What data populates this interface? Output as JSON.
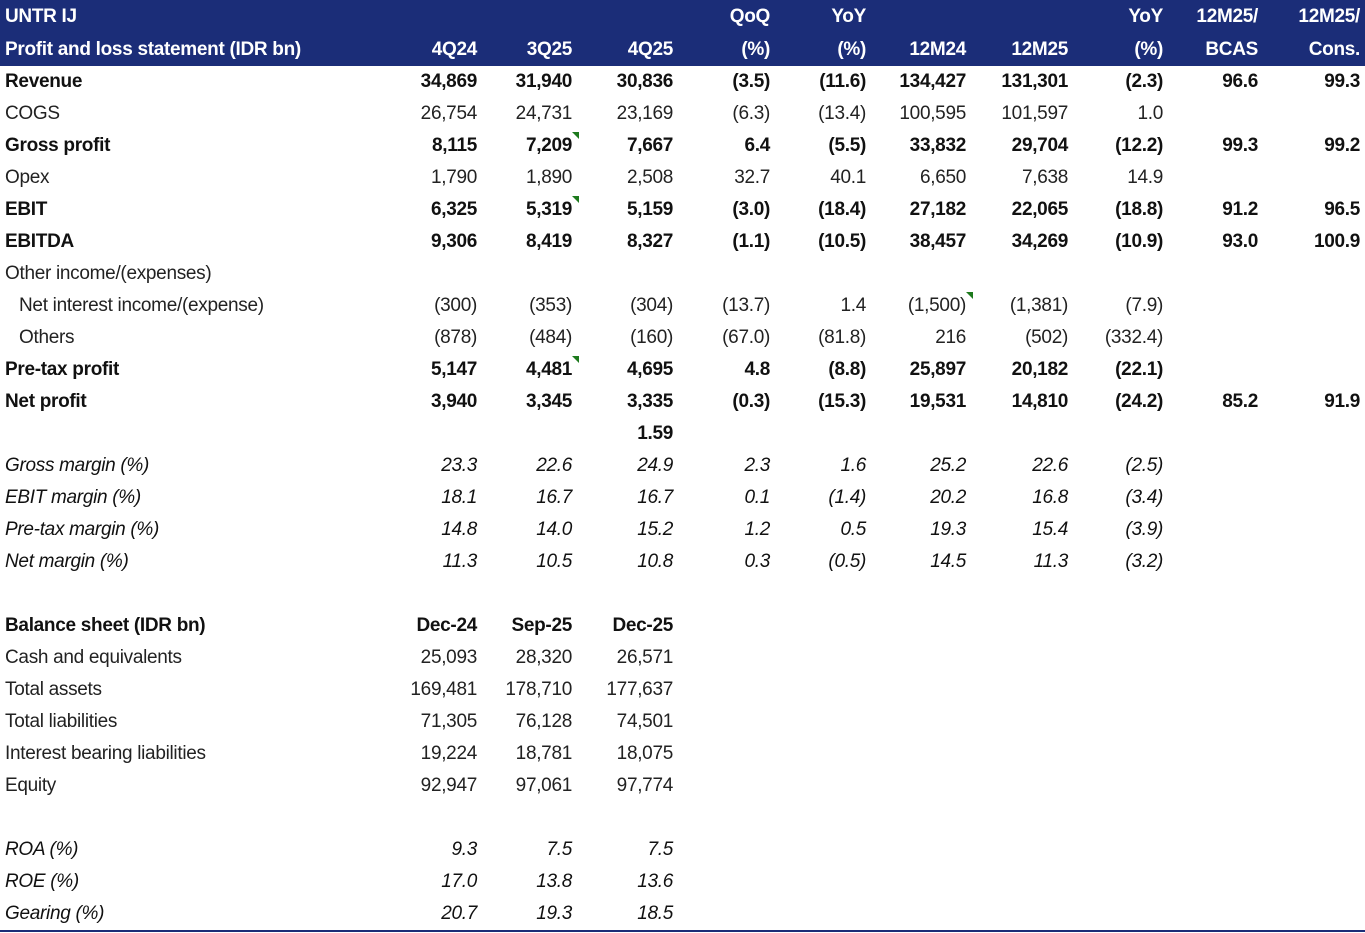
{
  "header": {
    "row1": [
      "UNTR IJ",
      "",
      "",
      "",
      "QoQ",
      "YoY",
      "",
      "",
      "YoY",
      "12M25/",
      "12M25/"
    ],
    "row2": [
      "Profit and loss statement (IDR bn)",
      "4Q24",
      "3Q25",
      "4Q25",
      "(%)",
      "(%)",
      "12M24",
      "12M25",
      "(%)",
      "BCAS",
      "Cons."
    ]
  },
  "rows": [
    {
      "kind": "bold",
      "cells": [
        "Revenue",
        "34,869",
        "31,940",
        "30,836",
        "(3.5)",
        "(11.6)",
        "134,427",
        "131,301",
        "(2.3)",
        "96.6",
        "99.3"
      ]
    },
    {
      "kind": "normal",
      "cells": [
        "COGS",
        "26,754",
        "24,731",
        "23,169",
        "(6.3)",
        "(13.4)",
        "100,595",
        "101,597",
        "1.0",
        "",
        ""
      ]
    },
    {
      "kind": "bold",
      "comment": [
        2
      ],
      "cells": [
        "Gross profit",
        "8,115",
        "7,209",
        "7,667",
        "6.4",
        "(5.5)",
        "33,832",
        "29,704",
        "(12.2)",
        "99.3",
        "99.2"
      ]
    },
    {
      "kind": "normal",
      "cells": [
        "Opex",
        "1,790",
        "1,890",
        "2,508",
        "32.7",
        "40.1",
        "6,650",
        "7,638",
        "14.9",
        "",
        ""
      ]
    },
    {
      "kind": "bold",
      "comment": [
        2
      ],
      "cells": [
        "EBIT",
        "6,325",
        "5,319",
        "5,159",
        "(3.0)",
        "(18.4)",
        "27,182",
        "22,065",
        "(18.8)",
        "91.2",
        "96.5"
      ]
    },
    {
      "kind": "bold",
      "cells": [
        "EBITDA",
        "9,306",
        "8,419",
        "8,327",
        "(1.1)",
        "(10.5)",
        "38,457",
        "34,269",
        "(10.9)",
        "93.0",
        "100.9"
      ]
    },
    {
      "kind": "normal",
      "cells": [
        "Other income/(expenses)",
        "",
        "",
        "",
        "",
        "",
        "",
        "",
        "",
        "",
        ""
      ]
    },
    {
      "kind": "indent",
      "comment": [
        6
      ],
      "cells": [
        "Net interest income/(expense)",
        "(300)",
        "(353)",
        "(304)",
        "(13.7)",
        "1.4",
        "(1,500)",
        "(1,381)",
        "(7.9)",
        "",
        ""
      ]
    },
    {
      "kind": "indent",
      "cells": [
        "Others",
        "(878)",
        "(484)",
        "(160)",
        "(67.0)",
        "(81.8)",
        "216",
        "(502)",
        "(332.4)",
        "",
        ""
      ]
    },
    {
      "kind": "bold",
      "comment": [
        2
      ],
      "cells": [
        "Pre-tax profit",
        "5,147",
        "4,481",
        "4,695",
        "4.8",
        "(8.8)",
        "25,897",
        "20,182",
        "(22.1)",
        "",
        ""
      ]
    },
    {
      "kind": "bold",
      "cells": [
        "Net profit",
        "3,940",
        "3,345",
        "3,335",
        "(0.3)",
        "(15.3)",
        "19,531",
        "14,810",
        "(24.2)",
        "85.2",
        "91.9"
      ]
    },
    {
      "kind": "bold",
      "cells": [
        "",
        "",
        "",
        "1.59",
        "",
        "",
        "",
        "",
        "",
        "",
        ""
      ]
    },
    {
      "kind": "italic",
      "cells": [
        "Gross margin (%)",
        "23.3",
        "22.6",
        "24.9",
        "2.3",
        "1.6",
        "25.2",
        "22.6",
        "(2.5)",
        "",
        ""
      ]
    },
    {
      "kind": "italic",
      "cells": [
        "EBIT margin (%)",
        "18.1",
        "16.7",
        "16.7",
        "0.1",
        "(1.4)",
        "20.2",
        "16.8",
        "(3.4)",
        "",
        ""
      ]
    },
    {
      "kind": "italic",
      "cells": [
        "Pre-tax margin (%)",
        "14.8",
        "14.0",
        "15.2",
        "1.2",
        "0.5",
        "19.3",
        "15.4",
        "(3.9)",
        "",
        ""
      ]
    },
    {
      "kind": "italic",
      "cells": [
        "Net margin (%)",
        "11.3",
        "10.5",
        "10.8",
        "0.3",
        "(0.5)",
        "14.5",
        "11.3",
        "(3.2)",
        "",
        ""
      ]
    },
    {
      "kind": "normal",
      "cells": [
        "",
        "",
        "",
        "",
        "",
        "",
        "",
        "",
        "",
        "",
        ""
      ]
    },
    {
      "kind": "bold",
      "cells": [
        "Balance sheet (IDR bn)",
        "Dec-24",
        "Sep-25",
        "Dec-25",
        "",
        "",
        "",
        "",
        "",
        "",
        ""
      ]
    },
    {
      "kind": "normal",
      "cells": [
        "Cash and equivalents",
        "25,093",
        "28,320",
        "26,571",
        "",
        "",
        "",
        "",
        "",
        "",
        ""
      ]
    },
    {
      "kind": "normal",
      "cells": [
        "Total assets",
        "169,481",
        "178,710",
        "177,637",
        "",
        "",
        "",
        "",
        "",
        "",
        ""
      ]
    },
    {
      "kind": "normal",
      "cells": [
        "Total liabilities",
        "71,305",
        "76,128",
        "74,501",
        "",
        "",
        "",
        "",
        "",
        "",
        ""
      ]
    },
    {
      "kind": "normal",
      "cells": [
        "Interest bearing liabilities",
        "19,224",
        "18,781",
        "18,075",
        "",
        "",
        "",
        "",
        "",
        "",
        ""
      ]
    },
    {
      "kind": "normal",
      "cells": [
        "Equity",
        "92,947",
        "97,061",
        "97,774",
        "",
        "",
        "",
        "",
        "",
        "",
        ""
      ]
    },
    {
      "kind": "normal",
      "cells": [
        "",
        "",
        "",
        "",
        "",
        "",
        "",
        "",
        "",
        "",
        ""
      ]
    },
    {
      "kind": "italic",
      "cells": [
        "ROA (%)",
        "9.3",
        "7.5",
        "7.5",
        "",
        "",
        "",
        "",
        "",
        "",
        ""
      ]
    },
    {
      "kind": "italic",
      "cells": [
        "ROE (%)",
        "17.0",
        "13.8",
        "13.6",
        "",
        "",
        "",
        "",
        "",
        "",
        ""
      ]
    },
    {
      "kind": "italic",
      "cells": [
        "Gearing (%)",
        "20.7",
        "19.3",
        "18.5",
        "",
        "",
        "",
        "",
        "",
        "",
        ""
      ]
    }
  ],
  "colors": {
    "header_bg": "#1b2d78",
    "comment_marker": "#1d7a1d"
  }
}
